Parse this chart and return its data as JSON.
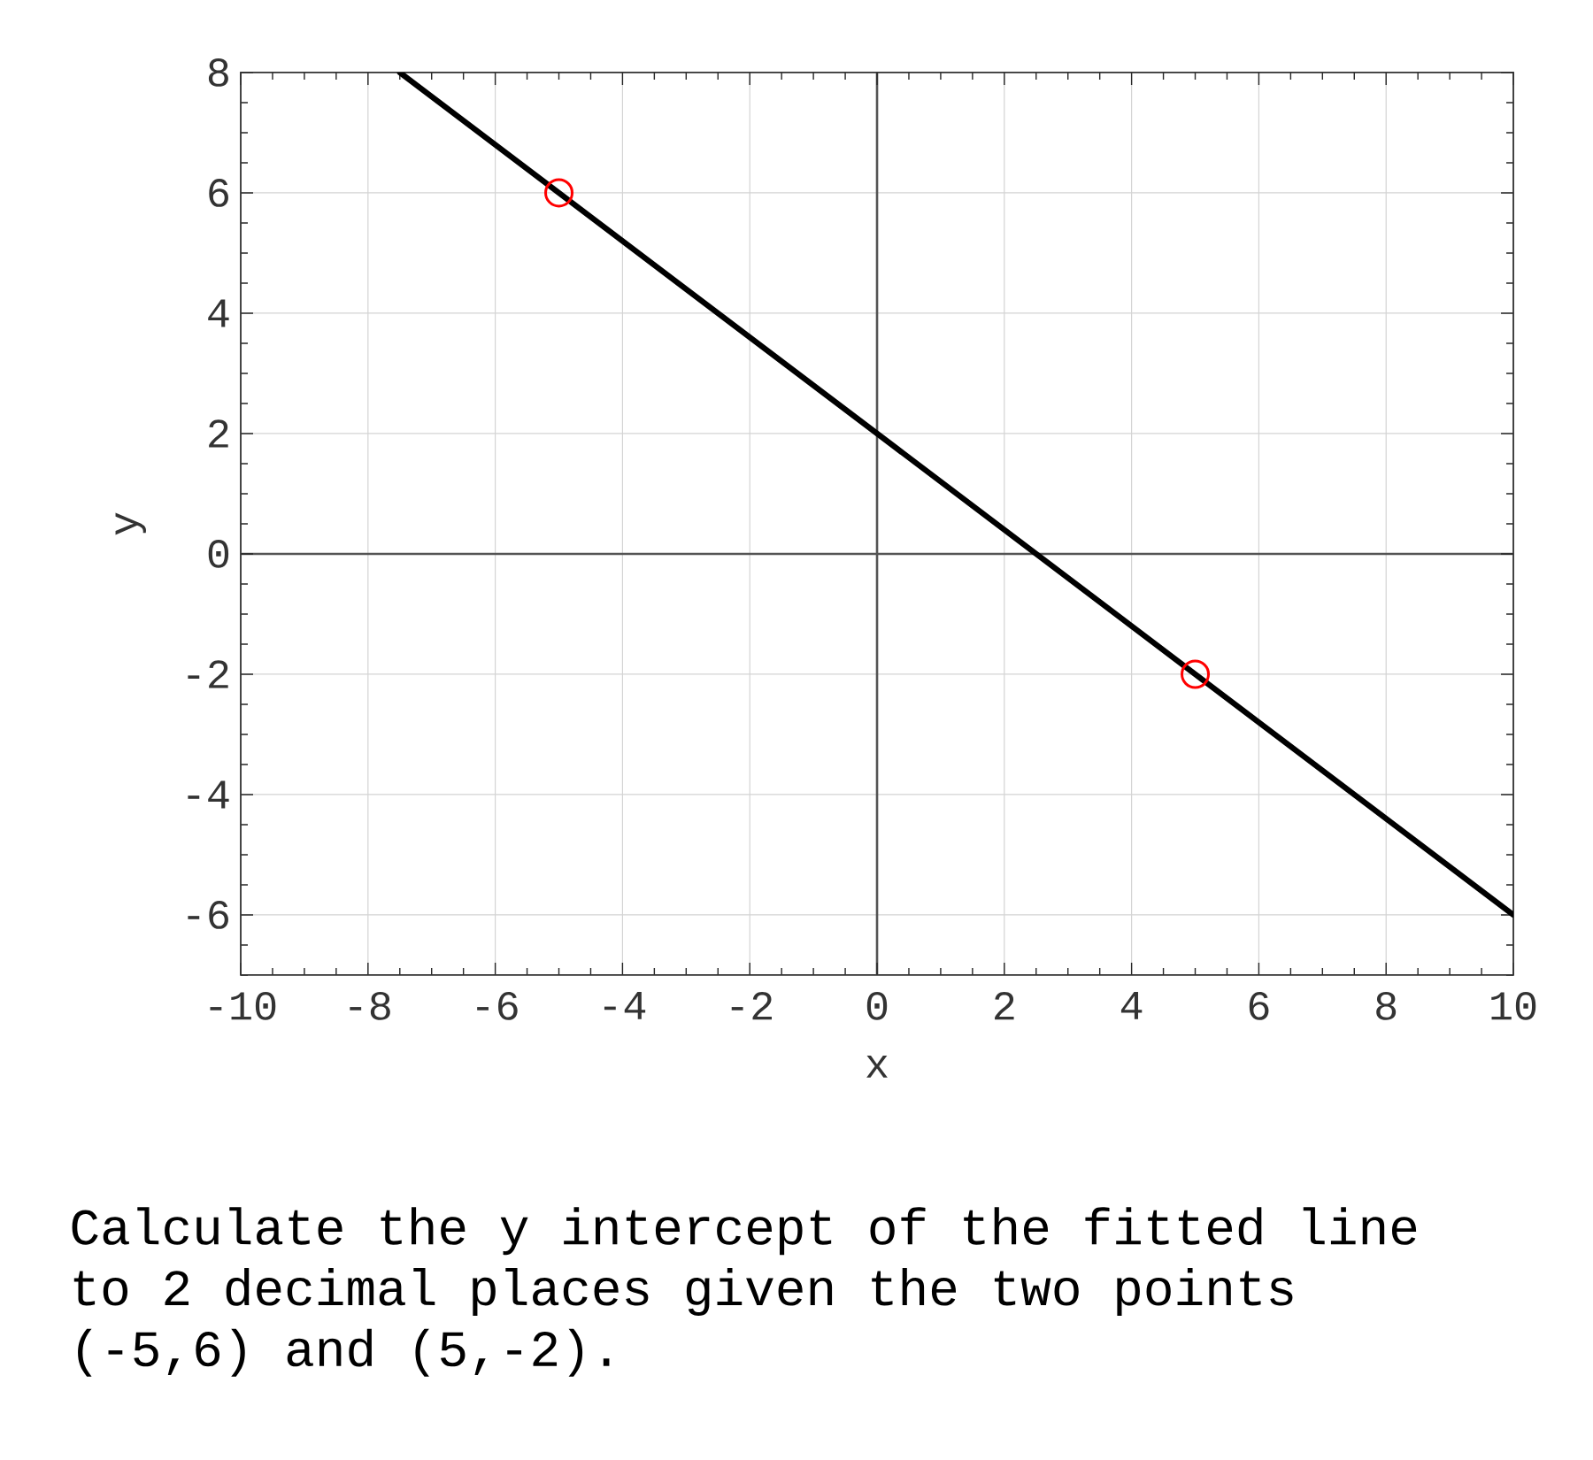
{
  "chart_data": {
    "type": "line",
    "xlabel": "x",
    "ylabel": "y",
    "series": [
      {
        "color": "#000000",
        "x": [
          -7.5,
          10
        ],
        "values": [
          8,
          -6
        ]
      },
      {
        "type": "scatter",
        "color": "#ff0000",
        "marker": "circle",
        "x": [
          -5,
          5
        ],
        "values": [
          6,
          -2
        ]
      }
    ],
    "xlim": [
      -10,
      10
    ],
    "xticks": [
      -10,
      -8,
      -6,
      -4,
      -2,
      0,
      2,
      4,
      6,
      8,
      10
    ],
    "ylim": [
      -7,
      8
    ],
    "yticks": [
      -6,
      -4,
      -2,
      0,
      2,
      4,
      6,
      8
    ],
    "grid": true,
    "annotations": [
      "Calculate the y intercept of the fitted line to 2 decimal places given the two points (-5,6) and (5,-2)."
    ]
  }
}
